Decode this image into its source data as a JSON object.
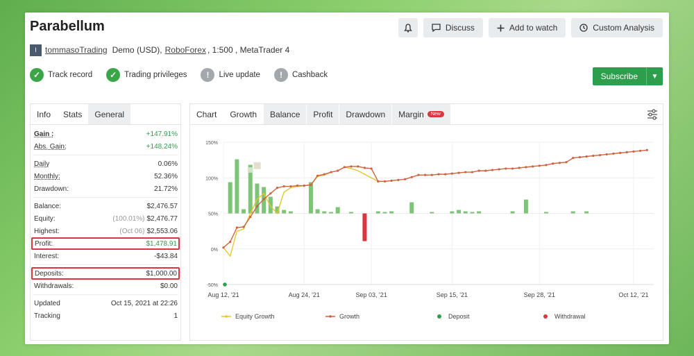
{
  "header": {
    "title": "Parabellum",
    "user_icon": "I",
    "username": "tommasoTrading",
    "account_type": "Demo (USD),",
    "broker": "RoboForex",
    "leverage": ", 1:500 , MetaTrader 4"
  },
  "buttons": {
    "discuss": "Discuss",
    "add_to_watch": "Add to watch",
    "custom_analysis": "Custom Analysis",
    "subscribe": "Subscribe"
  },
  "badges": [
    {
      "label": "Track record",
      "state": "on",
      "icon": "check-icon"
    },
    {
      "label": "Trading privileges",
      "state": "on",
      "icon": "check-icon"
    },
    {
      "label": "Live update",
      "state": "off",
      "icon": "exclamation-icon"
    },
    {
      "label": "Cashback",
      "state": "off",
      "icon": "exclamation-icon"
    }
  ],
  "stats_tabs": [
    "Info",
    "Stats",
    "General"
  ],
  "stats": {
    "gain": {
      "label": "Gain :",
      "value": "+147.91%"
    },
    "abs_gain": {
      "label": "Abs. Gain:",
      "value": "+148.24%"
    },
    "daily": {
      "label": "Daily",
      "value": "0.06%"
    },
    "monthly": {
      "label": "Monthly:",
      "value": "52.36%"
    },
    "drawdown": {
      "label": "Drawdown:",
      "value": "21.72%"
    },
    "balance": {
      "label": "Balance:",
      "value": "$2,476.57"
    },
    "equity": {
      "label": "Equity:",
      "note": "(100.01%)",
      "value": "$2,476.77"
    },
    "highest": {
      "label": "Highest:",
      "note": "(Oct 06)",
      "value": "$2,553.06"
    },
    "profit": {
      "label": "Profit:",
      "value": "$1,478.91"
    },
    "interest": {
      "label": "Interest:",
      "value": "-$43.84"
    },
    "deposits": {
      "label": "Deposits:",
      "value": "$1,000.00"
    },
    "withdrawals": {
      "label": "Withdrawals:",
      "value": "$0.00"
    },
    "updated": {
      "label": "Updated",
      "value": "Oct 15, 2021 at 22:26"
    },
    "tracking": {
      "label": "Tracking",
      "value": "1"
    }
  },
  "chart_tabs": {
    "chart": "Chart",
    "growth": "Growth",
    "balance": "Balance",
    "profit": "Profit",
    "drawdown": "Drawdown",
    "margin": "Margin",
    "new_badge": "New"
  },
  "colors": {
    "growth": "#d0613e",
    "equity": "#e6c62a",
    "bar_pos": "#7cc576",
    "bar_neg": "#d9363e",
    "deposit": "#2e9e4d",
    "withdrawal": "#d9363e",
    "accent": "#2e9e4d"
  },
  "chart_data": {
    "type": "line",
    "y_ticks": [
      "150%",
      "100%",
      "50%",
      "0%",
      "-50%"
    ],
    "ylim": [
      -50,
      150
    ],
    "x_tick_labels": [
      "Aug 12, '21",
      "Aug 24, '21",
      "Sep 03, '21",
      "Sep 15, '21",
      "Sep 28, '21",
      "Oct 12, '21"
    ],
    "x_tick_days": [
      0,
      12,
      22,
      34,
      47,
      61
    ],
    "xlim": [
      0,
      64
    ],
    "legend": [
      "Equity Growth",
      "Growth",
      "Deposit",
      "Withdrawal"
    ],
    "growth": {
      "name": "Growth",
      "x": [
        0,
        1,
        2,
        3,
        4,
        5,
        6,
        7,
        8,
        9,
        10,
        11,
        12,
        13,
        14,
        15,
        16,
        17,
        18,
        19,
        20,
        21,
        22,
        23,
        24,
        25,
        26,
        27,
        28,
        29,
        30,
        31,
        32,
        33,
        34,
        35,
        36,
        37,
        38,
        39,
        40,
        41,
        42,
        43,
        44,
        45,
        46,
        47,
        48,
        49,
        50,
        51,
        52,
        53,
        54,
        55,
        56,
        57,
        58,
        59,
        60,
        61,
        62,
        63
      ],
      "y": [
        2,
        10,
        30,
        31,
        45,
        60,
        70,
        78,
        86,
        88,
        88,
        89,
        89,
        90,
        103,
        105,
        108,
        110,
        115,
        116,
        116,
        114,
        113,
        95,
        95,
        96,
        97,
        98,
        101,
        104,
        104,
        104,
        105,
        105,
        106,
        107,
        108,
        108,
        110,
        110,
        111,
        112,
        113,
        113,
        114,
        115,
        116,
        117,
        118,
        120,
        121,
        122,
        128,
        129,
        130,
        131,
        132,
        133,
        134,
        135,
        136,
        137,
        138,
        139
      ]
    },
    "equity_growth": {
      "name": "Equity Growth",
      "x": [
        0,
        1,
        2,
        3,
        4,
        5,
        6,
        7,
        8,
        9,
        10,
        11,
        12,
        13,
        14,
        15,
        16,
        17,
        18,
        19,
        20,
        21,
        22,
        23
      ],
      "y": [
        2,
        -10,
        25,
        28,
        50,
        70,
        78,
        60,
        50,
        80,
        86,
        88,
        89,
        90,
        102,
        104,
        108,
        110,
        115,
        113,
        110,
        105,
        100,
        95
      ]
    },
    "bars": {
      "name": "Daily gain",
      "x": [
        1,
        2,
        3,
        4,
        5,
        6,
        7,
        8,
        9,
        10,
        13,
        14,
        15,
        16,
        17,
        19,
        21,
        23,
        24,
        25,
        28,
        31,
        34,
        35,
        36,
        37,
        38,
        43,
        45,
        48,
        52,
        54
      ],
      "y": [
        45,
        78,
        6,
        70,
        43,
        38,
        24,
        10,
        5,
        3,
        45,
        6,
        3,
        2,
        9,
        2,
        -40,
        3,
        2,
        3,
        16,
        2,
        3,
        5,
        3,
        2,
        3,
        3,
        20,
        2,
        3,
        3
      ]
    },
    "deposits_points": {
      "x": [
        0
      ],
      "y": [
        -50
      ]
    }
  }
}
